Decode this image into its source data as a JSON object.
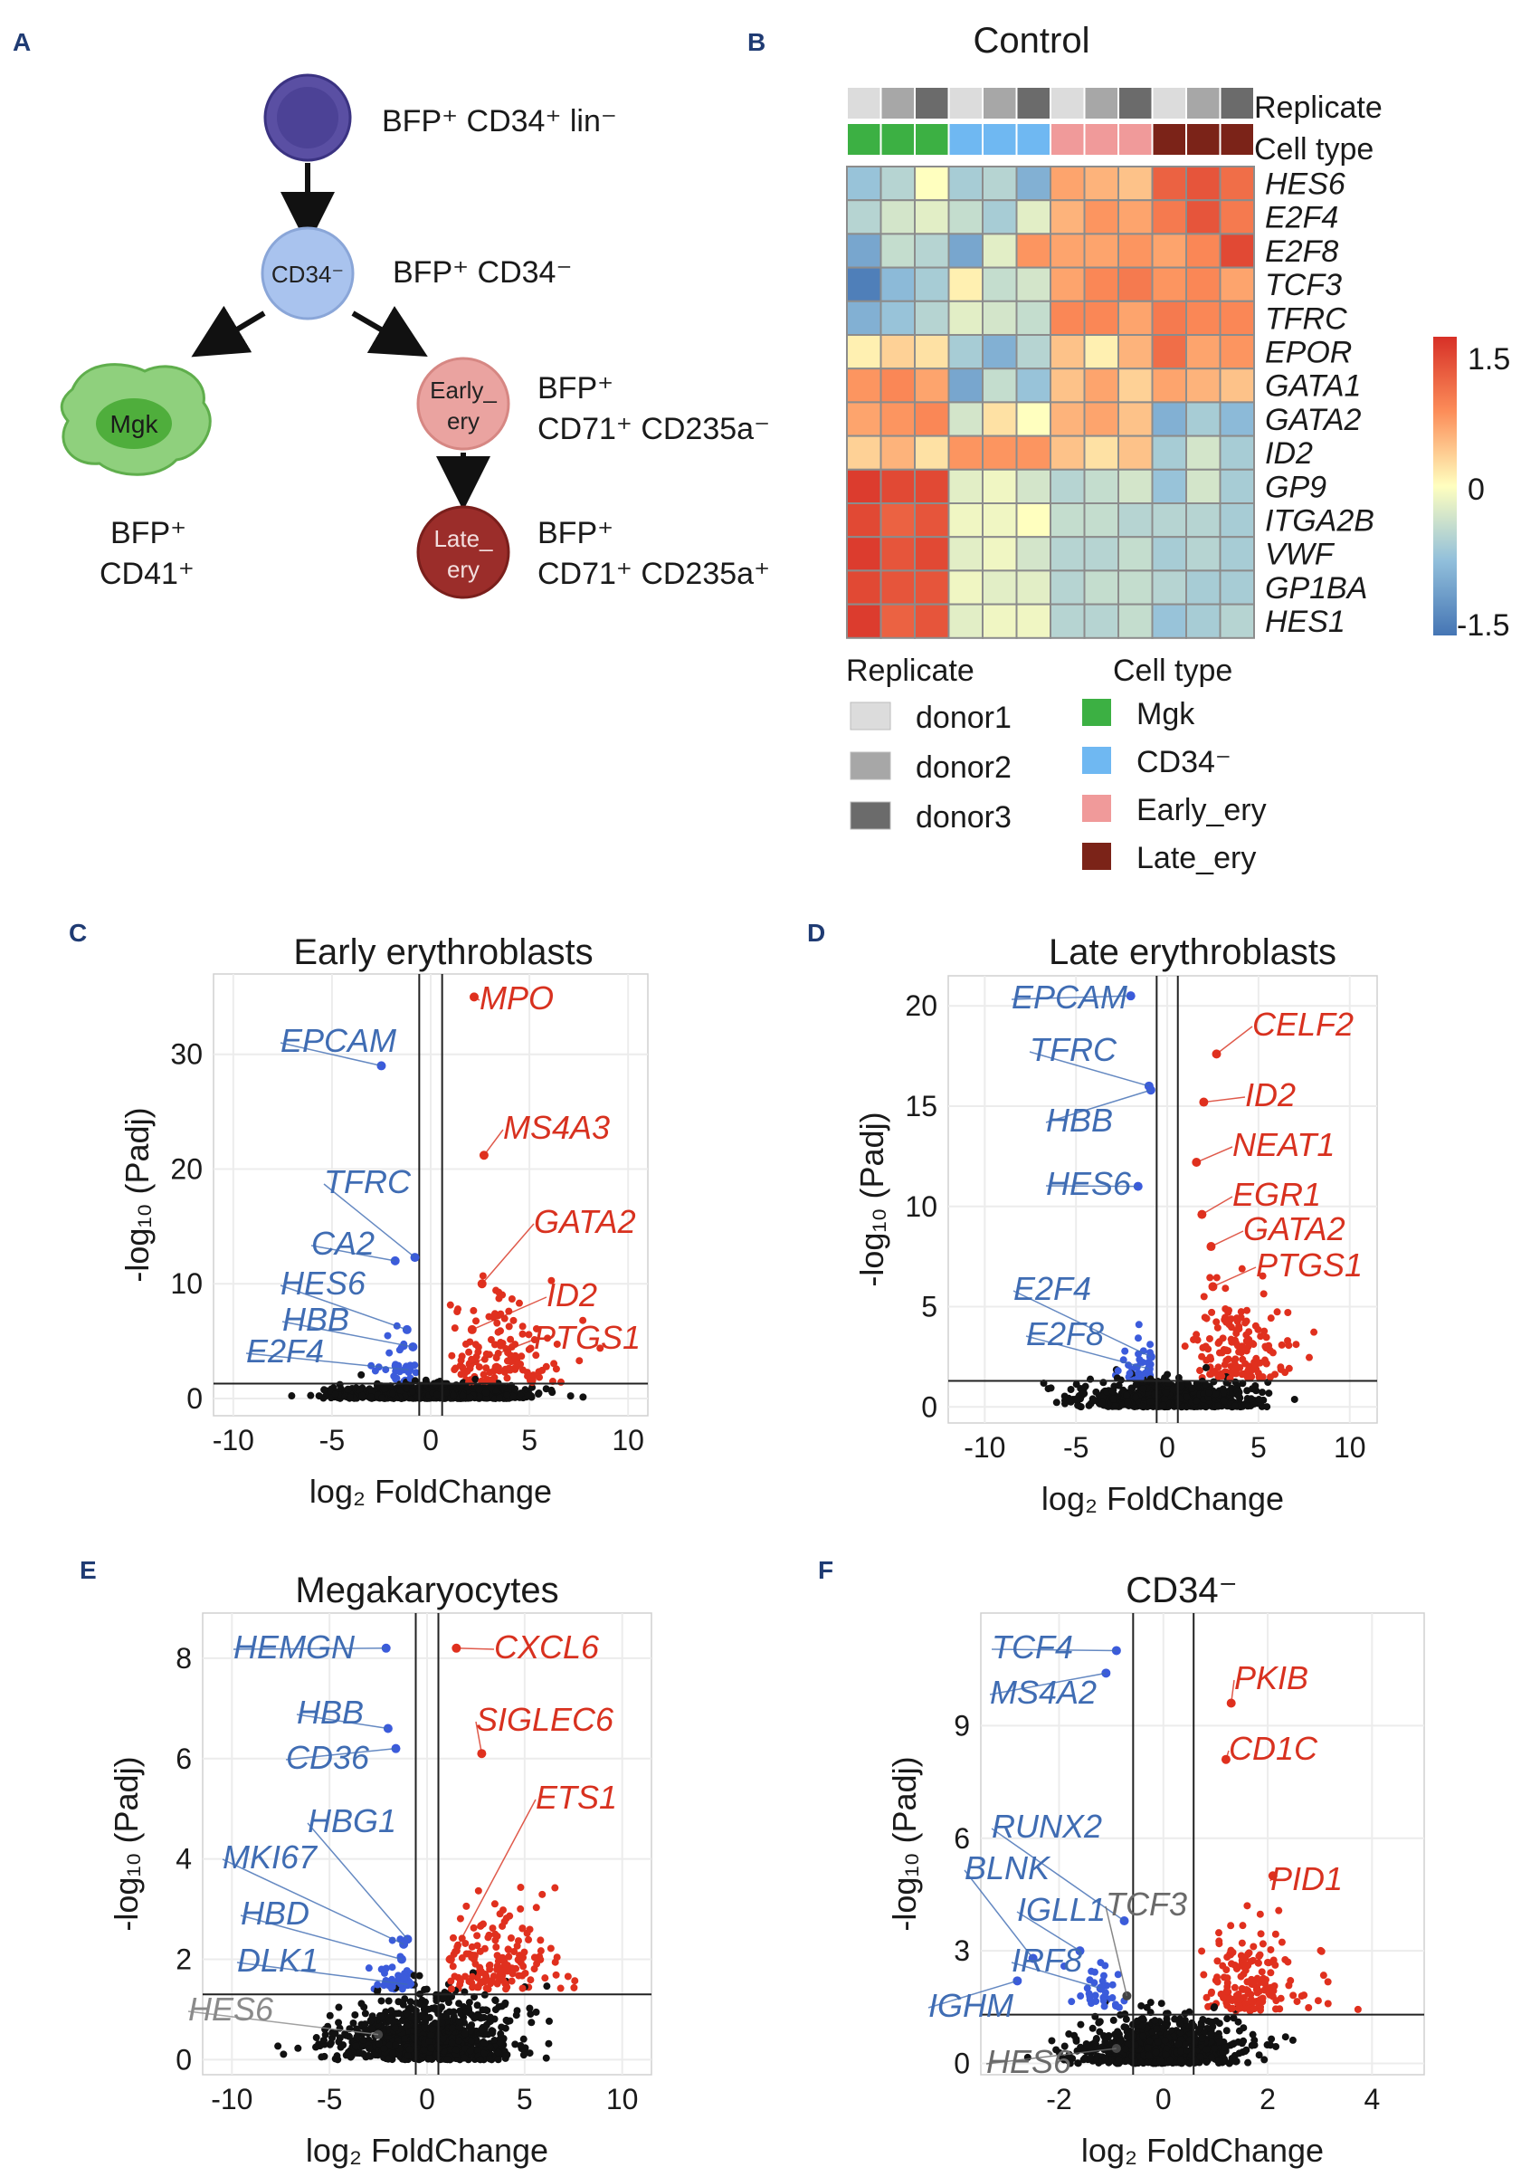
{
  "colors": {
    "panel_label": "#1f3b73",
    "up": "#e0301e",
    "down": "#3b5bdb",
    "down_text": "#3f6cb3",
    "up_text": "#d8311f",
    "grey_text": "#8a8a8a",
    "dark_grey_text": "#6a6a6a",
    "points": "#111111",
    "lines": "#222222",
    "hm_high": "#d73027",
    "hm_mid": "#ffffbf",
    "hm_low": "#4575b4",
    "node_hsc": "#5a4fa3",
    "node_cd34": "#a9c3ee",
    "node_mgk": "#7cc46a",
    "node_early": "#eaa3a0",
    "node_late": "#9b2d2a",
    "rep_donor1": "#dcdcdc",
    "rep_donor2": "#a7a7a7",
    "rep_donor3": "#6b6b6b",
    "ct_mgk": "#3cb043",
    "ct_cd34": "#6fb8f2",
    "ct_early": "#f09a9a",
    "ct_late": "#7b2318"
  },
  "panels": {
    "A": "A",
    "B": "B",
    "C": "C",
    "D": "D",
    "E": "E",
    "F": "F"
  },
  "schematic": {
    "hsc_label": "BFP⁺ CD34⁺ lin⁻",
    "cd34_inner": "CD34⁻",
    "cd34_label": "BFP⁺ CD34⁻",
    "mgk_inner": "Mgk",
    "mgk_label_1": "BFP⁺",
    "mgk_label_2": "CD41⁺",
    "early_inner_1": "Early_",
    "early_inner_2": "ery",
    "early_label_1": "BFP⁺",
    "early_label_2": "CD71⁺ CD235a⁻",
    "late_inner_1": "Late_",
    "late_inner_2": "ery",
    "late_label_1": "BFP⁺",
    "late_label_2": "CD71⁺ CD235a⁺"
  },
  "heatmap": {
    "title": "Control",
    "replicate_label": "Replicate",
    "celltype_label": "Cell type",
    "replicates": [
      "donor1",
      "donor2",
      "donor3",
      "donor1",
      "donor2",
      "donor3",
      "donor1",
      "donor2",
      "donor3",
      "donor1",
      "donor2",
      "donor3"
    ],
    "celltypes": [
      "Mgk",
      "Mgk",
      "Mgk",
      "CD34-",
      "CD34-",
      "CD34-",
      "Early_ery",
      "Early_ery",
      "Early_ery",
      "Late_ery",
      "Late_ery",
      "Late_ery"
    ],
    "genes": [
      "HES6",
      "E2F4",
      "E2F8",
      "TCF3",
      "TFRC",
      "EPOR",
      "GATA1",
      "GATA2",
      "ID2",
      "GP9",
      "ITGA2B",
      "VWF",
      "GP1BA",
      "HES1"
    ],
    "values": [
      [
        -0.7,
        -0.5,
        0.0,
        -0.6,
        -0.5,
        -0.9,
        0.6,
        0.5,
        0.4,
        1.1,
        1.2,
        1.0
      ],
      [
        -0.5,
        -0.3,
        -0.2,
        -0.4,
        -0.6,
        -0.2,
        0.5,
        0.7,
        0.6,
        0.9,
        1.2,
        0.9
      ],
      [
        -1.0,
        -0.4,
        -0.5,
        -1.0,
        -0.2,
        0.7,
        0.6,
        0.6,
        0.7,
        0.6,
        0.8,
        1.3
      ],
      [
        -1.4,
        -0.8,
        -0.6,
        0.1,
        -0.4,
        -0.3,
        0.6,
        0.8,
        0.9,
        0.7,
        0.8,
        0.6
      ],
      [
        -0.9,
        -0.7,
        -0.5,
        -0.2,
        -0.3,
        -0.4,
        0.8,
        0.8,
        0.6,
        0.9,
        0.8,
        0.8
      ],
      [
        0.1,
        0.3,
        0.2,
        -0.6,
        -0.9,
        -0.5,
        0.4,
        0.1,
        0.5,
        1.0,
        0.6,
        0.7
      ],
      [
        0.7,
        0.8,
        0.6,
        -1.0,
        -0.4,
        -0.7,
        0.4,
        0.6,
        0.3,
        0.6,
        0.5,
        0.4
      ],
      [
        0.6,
        0.7,
        0.8,
        -0.3,
        0.2,
        0.0,
        0.5,
        0.6,
        0.4,
        -0.9,
        -0.6,
        -0.8
      ],
      [
        0.3,
        0.5,
        0.2,
        0.7,
        0.7,
        0.7,
        0.4,
        0.2,
        0.4,
        -0.6,
        -0.3,
        -0.6
      ],
      [
        1.4,
        1.3,
        1.3,
        -0.2,
        -0.1,
        -0.3,
        -0.5,
        -0.4,
        -0.3,
        -0.7,
        -0.3,
        -0.6
      ],
      [
        1.3,
        1.1,
        1.2,
        -0.1,
        -0.1,
        0.0,
        -0.4,
        -0.4,
        -0.5,
        -0.5,
        -0.5,
        -0.6
      ],
      [
        1.4,
        1.2,
        1.3,
        -0.2,
        -0.1,
        -0.3,
        -0.5,
        -0.5,
        -0.4,
        -0.6,
        -0.5,
        -0.6
      ],
      [
        1.3,
        1.2,
        1.2,
        -0.1,
        -0.2,
        -0.2,
        -0.5,
        -0.4,
        -0.4,
        -0.5,
        -0.6,
        -0.6
      ],
      [
        1.4,
        1.1,
        1.2,
        -0.2,
        -0.1,
        -0.1,
        -0.5,
        -0.5,
        -0.4,
        -0.7,
        -0.6,
        -0.5
      ]
    ],
    "scale_ticks": [
      "1.5",
      "0",
      "-1.5"
    ],
    "scale_range": [
      -1.5,
      1.5
    ],
    "legend_replicate_title": "Replicate",
    "legend_replicate_items": [
      "donor1",
      "donor2",
      "donor3"
    ],
    "legend_celltype_title": "Cell type",
    "legend_celltype_items": [
      "Mgk",
      "CD34⁻",
      "Early_ery",
      "Late_ery"
    ]
  },
  "chart_data": [
    {
      "type": "scatter",
      "panel": "C",
      "title": "Early erythroblasts",
      "xlabel": "log₂ FoldChange",
      "ylabel": "-log₁₀ (Padj)",
      "xlim": [
        -11,
        11
      ],
      "ylim": [
        -1.5,
        37
      ],
      "xticks": [
        -10,
        -5,
        0,
        5,
        10
      ],
      "yticks": [
        0,
        10,
        20,
        30
      ],
      "vlines": [
        -0.58,
        0.58
      ],
      "hline": 1.3,
      "highlighted": [
        {
          "gene": "MPO",
          "x": 2.2,
          "y": 35.0,
          "dir": "up"
        },
        {
          "gene": "MS4A3",
          "x": 2.7,
          "y": 21.2,
          "dir": "up"
        },
        {
          "gene": "GATA2",
          "x": 2.6,
          "y": 10.0,
          "dir": "up"
        },
        {
          "gene": "ID2",
          "x": 2.1,
          "y": 6.0,
          "dir": "up"
        },
        {
          "gene": "PTGS1",
          "x": 2.0,
          "y": 3.0,
          "dir": "up"
        },
        {
          "gene": "EPCAM",
          "x": -2.5,
          "y": 29.0,
          "dir": "down"
        },
        {
          "gene": "TFRC",
          "x": -0.8,
          "y": 12.3,
          "dir": "down"
        },
        {
          "gene": "CA2",
          "x": -1.8,
          "y": 12.0,
          "dir": "down"
        },
        {
          "gene": "HES6",
          "x": -1.2,
          "y": 6.0,
          "dir": "down"
        },
        {
          "gene": "HBB",
          "x": -0.9,
          "y": 4.5,
          "dir": "down"
        },
        {
          "gene": "E2F4",
          "x": -1.1,
          "y": 2.5,
          "dir": "down"
        }
      ]
    },
    {
      "type": "scatter",
      "panel": "D",
      "title": "Late erythroblasts",
      "xlabel": "log₂ FoldChange",
      "ylabel": "-log₁₀ (Padj)",
      "xlim": [
        -12,
        11.5
      ],
      "ylim": [
        -0.8,
        21.5
      ],
      "xticks": [
        -10,
        -5,
        0,
        5,
        10
      ],
      "yticks": [
        0,
        5,
        10,
        15,
        20
      ],
      "vlines": [
        -0.58,
        0.58
      ],
      "hline": 1.3,
      "highlighted": [
        {
          "gene": "CELF2",
          "x": 2.7,
          "y": 17.6,
          "dir": "up"
        },
        {
          "gene": "ID2",
          "x": 2.0,
          "y": 15.2,
          "dir": "up"
        },
        {
          "gene": "NEAT1",
          "x": 1.6,
          "y": 12.2,
          "dir": "up"
        },
        {
          "gene": "EGR1",
          "x": 1.9,
          "y": 9.6,
          "dir": "up"
        },
        {
          "gene": "GATA2",
          "x": 2.4,
          "y": 8.0,
          "dir": "up"
        },
        {
          "gene": "PTGS1",
          "x": 2.5,
          "y": 6.0,
          "dir": "up"
        },
        {
          "gene": "EPCAM",
          "x": -2.0,
          "y": 20.5,
          "dir": "down"
        },
        {
          "gene": "TFRC",
          "x": -1.0,
          "y": 16.0,
          "dir": "down"
        },
        {
          "gene": "HBB",
          "x": -0.9,
          "y": 15.8,
          "dir": "down"
        },
        {
          "gene": "HES6",
          "x": -1.6,
          "y": 11.0,
          "dir": "down"
        },
        {
          "gene": "E2F4",
          "x": -0.9,
          "y": 2.5,
          "dir": "down"
        },
        {
          "gene": "E2F8",
          "x": -1.0,
          "y": 1.9,
          "dir": "down"
        }
      ]
    },
    {
      "type": "scatter",
      "panel": "E",
      "title": "Megakaryocytes",
      "xlabel": "log₂ FoldChange",
      "ylabel": "-log₁₀ (Padj)",
      "xlim": [
        -11.5,
        11.5
      ],
      "ylim": [
        -0.3,
        8.9
      ],
      "xticks": [
        -10,
        -5,
        0,
        5,
        10
      ],
      "yticks": [
        0,
        2,
        4,
        6,
        8
      ],
      "vlines": [
        -0.58,
        0.58
      ],
      "hline": 1.3,
      "highlighted": [
        {
          "gene": "CXCL6",
          "x": 1.5,
          "y": 8.2,
          "dir": "up"
        },
        {
          "gene": "SIGLEC6",
          "x": 2.8,
          "y": 6.1,
          "dir": "up"
        },
        {
          "gene": "ETS1",
          "x": 1.2,
          "y": 2.0,
          "dir": "up"
        },
        {
          "gene": "HEMGN",
          "x": -2.1,
          "y": 8.2,
          "dir": "down"
        },
        {
          "gene": "HBB",
          "x": -2.0,
          "y": 6.6,
          "dir": "down"
        },
        {
          "gene": "CD36",
          "x": -1.6,
          "y": 6.2,
          "dir": "down"
        },
        {
          "gene": "HBG1",
          "x": -1.0,
          "y": 2.4,
          "dir": "down"
        },
        {
          "gene": "MKI67",
          "x": -1.2,
          "y": 2.3,
          "dir": "down"
        },
        {
          "gene": "HBD",
          "x": -1.3,
          "y": 2.0,
          "dir": "down"
        },
        {
          "gene": "DLK1",
          "x": -1.0,
          "y": 1.5,
          "dir": "down"
        },
        {
          "gene": "HES6",
          "x": -2.5,
          "y": 0.5,
          "dir": "ns"
        }
      ]
    },
    {
      "type": "scatter",
      "panel": "F",
      "title": "CD34⁻",
      "xlabel": "log₂ FoldChange",
      "ylabel": "-log₁₀ (Padj)",
      "xlim": [
        -3.5,
        5.0
      ],
      "ylim": [
        -0.3,
        12.0
      ],
      "xticks": [
        -2,
        0,
        2,
        4
      ],
      "yticks": [
        0,
        3,
        6,
        9
      ],
      "vlines": [
        -0.58,
        0.58
      ],
      "hline": 1.3,
      "highlighted": [
        {
          "gene": "PKIB",
          "x": 1.3,
          "y": 9.6,
          "dir": "up"
        },
        {
          "gene": "CD1C",
          "x": 1.2,
          "y": 8.1,
          "dir": "up"
        },
        {
          "gene": "PID1",
          "x": 2.1,
          "y": 5.0,
          "dir": "up"
        },
        {
          "gene": "TCF4",
          "x": -0.9,
          "y": 11.0,
          "dir": "down"
        },
        {
          "gene": "MS4A2",
          "x": -1.1,
          "y": 10.4,
          "dir": "down"
        },
        {
          "gene": "RUNX2",
          "x": -0.75,
          "y": 3.8,
          "dir": "down"
        },
        {
          "gene": "BLNK",
          "x": -2.5,
          "y": 2.8,
          "dir": "down"
        },
        {
          "gene": "IGLL1",
          "x": -1.6,
          "y": 3.0,
          "dir": "down"
        },
        {
          "gene": "IRF8",
          "x": -1.2,
          "y": 2.0,
          "dir": "down"
        },
        {
          "gene": "IGHM",
          "x": -2.8,
          "y": 2.2,
          "dir": "down"
        },
        {
          "gene": "TCF3",
          "x": -0.7,
          "y": 1.8,
          "dir": "ns"
        },
        {
          "gene": "HES6",
          "x": -0.9,
          "y": 0.4,
          "dir": "ns"
        }
      ]
    }
  ]
}
